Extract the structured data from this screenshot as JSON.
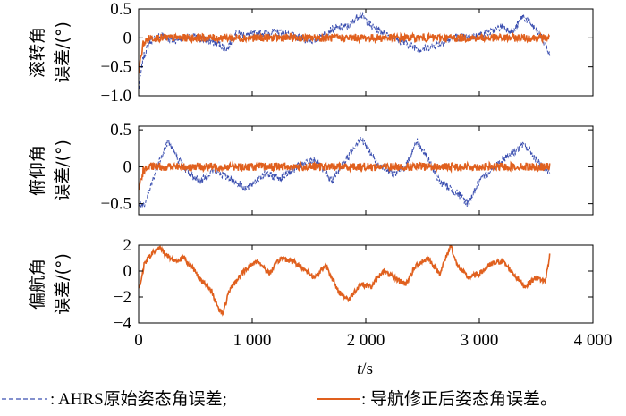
{
  "colors": {
    "ahrs": "#3b4fb0",
    "nav": "#e0601e",
    "axis": "#000000"
  },
  "xaxis": {
    "label": "t/s",
    "label_italic": "t",
    "label_unit": "/s",
    "ticks": [
      "0",
      "1 000",
      "2 000",
      "3 000",
      "4 000"
    ],
    "tick_values": [
      0,
      1000,
      2000,
      3000,
      4000
    ],
    "range": [
      0,
      4000
    ]
  },
  "legend": {
    "ahrs_label": ": AHRS原始姿态角误差;",
    "nav_label": ": 导航修正后姿态角误差。"
  },
  "chart_data": [
    {
      "type": "line",
      "ylabel_line1": "滚转角",
      "ylabel_line2": "误差/(°)",
      "ylim": [
        -1.0,
        0.5
      ],
      "yticks": [
        "0.5",
        "0",
        "-0.5",
        "-1.0"
      ],
      "ytick_values": [
        0.5,
        0,
        -0.5,
        -1.0
      ],
      "xlim": [
        0,
        4000
      ],
      "series": [
        {
          "name": "AHRS原始姿态角误差",
          "style": "dashed",
          "x": [
            0,
            40,
            100,
            200,
            300,
            400,
            500,
            600,
            700,
            780,
            850,
            950,
            1100,
            1250,
            1400,
            1550,
            1700,
            1850,
            1950,
            2050,
            2200,
            2350,
            2500,
            2650,
            2800,
            2900,
            3000,
            3100,
            3200,
            3300,
            3380,
            3450,
            3550,
            3620
          ],
          "y": [
            -0.9,
            -0.35,
            -0.05,
            0.05,
            -0.05,
            0.0,
            0.02,
            -0.05,
            -0.1,
            -0.2,
            0.08,
            0.05,
            0.08,
            0.1,
            0.0,
            -0.05,
            0.15,
            0.2,
            0.42,
            0.2,
            0.05,
            -0.1,
            -0.2,
            -0.1,
            0.02,
            0.0,
            0.05,
            0.1,
            0.2,
            0.1,
            0.38,
            0.25,
            0.0,
            -0.3
          ]
        },
        {
          "name": "导航修正后姿态角误差",
          "style": "solid",
          "x": [
            0,
            40,
            100,
            200,
            400,
            600,
            800,
            1000,
            1200,
            1400,
            1600,
            1800,
            2000,
            2200,
            2400,
            2600,
            2800,
            3000,
            3200,
            3400,
            3620
          ],
          "y": [
            -0.6,
            -0.1,
            0.0,
            0.0,
            0.0,
            0.0,
            0.0,
            0.0,
            0.0,
            0.0,
            0.0,
            0.0,
            0.0,
            0.0,
            0.0,
            0.0,
            0.0,
            0.0,
            0.0,
            0.0,
            0.0
          ]
        }
      ]
    },
    {
      "type": "line",
      "ylabel_line1": "俯仰角",
      "ylabel_line2": "误差/(°)",
      "ylim": [
        -0.65,
        0.55
      ],
      "yticks": [
        "0.5",
        "0",
        "-0.5"
      ],
      "ytick_values": [
        0.5,
        0,
        -0.5
      ],
      "xlim": [
        0,
        4000
      ],
      "series": [
        {
          "name": "AHRS原始姿态角误差",
          "style": "dashed",
          "x": [
            0,
            50,
            120,
            200,
            260,
            350,
            450,
            550,
            650,
            800,
            950,
            1100,
            1250,
            1400,
            1550,
            1700,
            1850,
            1950,
            2100,
            2250,
            2350,
            2450,
            2550,
            2650,
            2800,
            2900,
            3000,
            3100,
            3200,
            3300,
            3400,
            3500,
            3620
          ],
          "y": [
            -0.5,
            -0.55,
            -0.2,
            0.15,
            0.35,
            0.1,
            -0.1,
            -0.2,
            -0.05,
            -0.15,
            -0.3,
            -0.1,
            -0.15,
            0.0,
            0.1,
            -0.2,
            0.15,
            0.4,
            0.05,
            -0.1,
            0.0,
            0.35,
            0.1,
            -0.2,
            -0.35,
            -0.5,
            -0.2,
            -0.05,
            0.1,
            0.2,
            0.3,
            0.1,
            -0.1
          ]
        },
        {
          "name": "导航修正后姿态角误差",
          "style": "solid",
          "x": [
            0,
            40,
            100,
            200,
            400,
            600,
            800,
            1000,
            1200,
            1400,
            1600,
            1800,
            2000,
            2200,
            2400,
            2600,
            2800,
            3000,
            3200,
            3400,
            3620
          ],
          "y": [
            -0.3,
            -0.05,
            0.0,
            0.0,
            0.0,
            0.0,
            0.0,
            0.0,
            0.0,
            0.0,
            0.0,
            0.0,
            0.0,
            0.0,
            0.0,
            0.0,
            0.0,
            0.0,
            0.0,
            0.0,
            0.0
          ]
        }
      ]
    },
    {
      "type": "line",
      "ylabel_line1": "偏航角",
      "ylabel_line2": "误差/(°)",
      "ylim": [
        -4,
        2
      ],
      "yticks": [
        "2",
        "0",
        "-2",
        "-4"
      ],
      "ytick_values": [
        2,
        0,
        -2,
        -4
      ],
      "xlim": [
        0,
        4000
      ],
      "series": [
        {
          "name": "导航修正后姿态角误差",
          "style": "solid",
          "x": [
            0,
            50,
            100,
            180,
            250,
            320,
            400,
            480,
            560,
            640,
            700,
            740,
            800,
            880,
            960,
            1050,
            1150,
            1250,
            1350,
            1450,
            1550,
            1650,
            1750,
            1850,
            1950,
            2050,
            2150,
            2250,
            2350,
            2450,
            2550,
            2650,
            2750,
            2800,
            2900,
            3000,
            3100,
            3200,
            3300,
            3400,
            3500,
            3580,
            3620
          ],
          "y": [
            -1.5,
            0.5,
            1.2,
            1.8,
            1.2,
            0.8,
            1.0,
            0.2,
            -0.8,
            -1.5,
            -2.8,
            -3.3,
            -1.5,
            -0.5,
            0.3,
            0.8,
            -0.2,
            1.0,
            0.8,
            0.2,
            -0.5,
            0.5,
            -1.5,
            -2.2,
            -1.0,
            -1.2,
            0.0,
            -0.5,
            -1.0,
            0.5,
            1.0,
            -0.2,
            2.0,
            0.5,
            -0.5,
            -0.2,
            0.5,
            0.8,
            -0.2,
            -1.2,
            -0.5,
            -0.8,
            1.2
          ]
        }
      ]
    }
  ]
}
